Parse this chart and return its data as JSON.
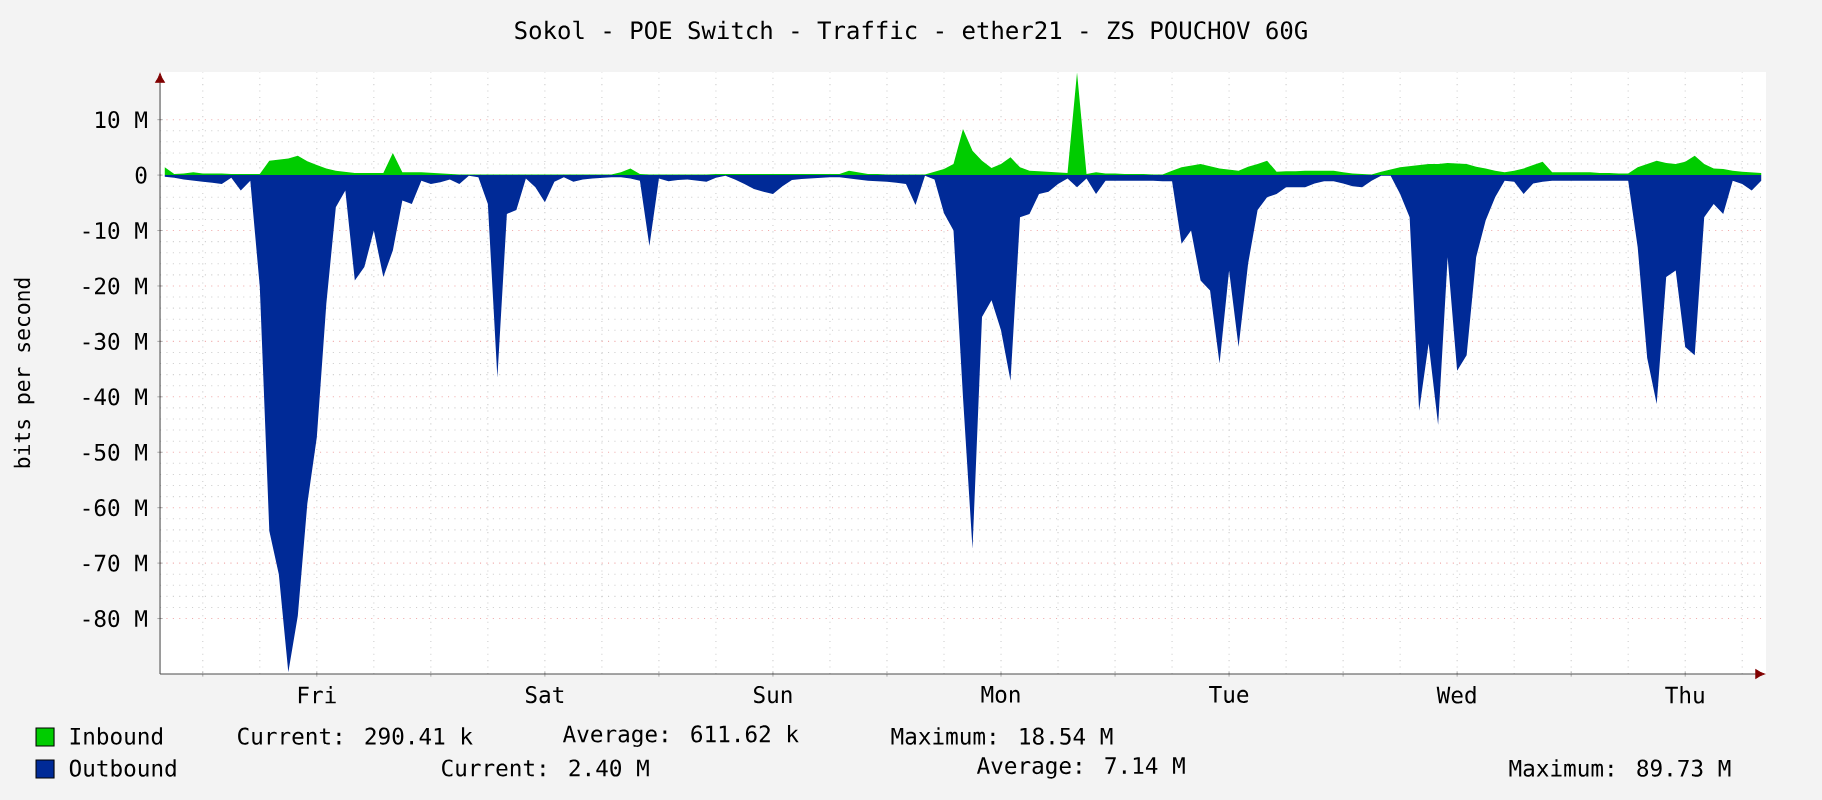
{
  "chart_data": {
    "type": "area",
    "title": "Sokol - POE Switch - Traffic - ether21 - ZS POUCHOV 60G",
    "ylabel": "bits per second",
    "ylim": [
      -90,
      18.6
    ],
    "categories": [
      null,
      null,
      null,
      null,
      null,
      null,
      null,
      null,
      null,
      null,
      null,
      null,
      null,
      null,
      null,
      null,
      "Fri",
      null,
      null,
      null,
      null,
      null,
      null,
      null,
      null,
      null,
      null,
      null,
      null,
      null,
      null,
      null,
      null,
      null,
      null,
      null,
      null,
      null,
      null,
      null,
      "Sat",
      null,
      null,
      null,
      null,
      null,
      null,
      null,
      null,
      null,
      null,
      null,
      null,
      null,
      null,
      null,
      null,
      null,
      null,
      null,
      null,
      null,
      null,
      null,
      "Sun",
      null,
      null,
      null,
      null,
      null,
      null,
      null,
      null,
      null,
      null,
      null,
      null,
      null,
      null,
      null,
      null,
      null,
      null,
      null,
      null,
      null,
      null,
      null,
      "Mon",
      null,
      null,
      null,
      null,
      null,
      null,
      null,
      null,
      null,
      null,
      null,
      null,
      null,
      null,
      null,
      null,
      null,
      null,
      null,
      null,
      null,
      null,
      null,
      "Tue",
      null,
      null,
      null,
      null,
      null,
      null,
      null,
      null,
      null,
      null,
      null,
      null,
      null,
      null,
      null,
      null,
      null,
      null,
      null,
      null,
      null,
      null,
      null,
      "Wed",
      null,
      null,
      null,
      null,
      null,
      null,
      null,
      null,
      null,
      null,
      null,
      null,
      null,
      null,
      null,
      null,
      null,
      null,
      null,
      null,
      null,
      null,
      null,
      "Thu",
      null,
      null,
      null,
      null,
      null,
      null,
      null,
      null
    ],
    "yticks": [
      {
        "value": 10,
        "label": "10 M"
      },
      0,
      {
        "value": -10,
        "label": "-10 M"
      },
      {
        "value": -20,
        "label": "-20 M"
      },
      {
        "value": -30,
        "label": "-30 M"
      },
      {
        "value": -40,
        "label": "-40 M"
      },
      {
        "value": -50,
        "label": "-50 M"
      },
      {
        "value": -60,
        "label": "-60 M"
      },
      {
        "value": -70,
        "label": "-70 M"
      },
      {
        "value": -80,
        "label": "-80 M"
      }
    ],
    "grid": true,
    "legend": "bottom",
    "annotations": [
      "Current: 290.41 k",
      "Average: 611.62 k",
      "Maximum: 18.54 M",
      "Current: 2.40 M",
      "Average: 7.14 M",
      "Maximum: 89.73 M"
    ],
    "series": [
      {
        "name": "Inbound",
        "color": "#00cc00",
        "values": [
          1.4,
          0.2,
          0.3,
          0.5,
          0.3,
          0.3,
          0.3,
          0.2,
          0.2,
          0.2,
          0.2,
          2.6,
          2.8,
          3.0,
          3.5,
          2.5,
          1.8,
          1.2,
          0.8,
          0.6,
          0.4,
          0.4,
          0.4,
          0.4,
          4.0,
          0.5,
          0.5,
          0.5,
          0.4,
          0.3,
          0.2,
          0.1,
          0.1,
          0.1,
          0.1,
          0.1,
          0.1,
          0.1,
          0.1,
          0.1,
          0.1,
          0.1,
          0.1,
          0.1,
          0.1,
          0.1,
          0.1,
          0.1,
          0.5,
          1.2,
          0.2,
          0.1,
          0.1,
          0.1,
          0.1,
          0.1,
          0.1,
          0.1,
          0.2,
          0.2,
          0.2,
          0.2,
          0.2,
          0.2,
          0.2,
          0.2,
          0.2,
          0.2,
          0.2,
          0.2,
          0.2,
          0.2,
          0.8,
          0.5,
          0.2,
          0.2,
          0.1,
          0.1,
          0.1,
          0.1,
          0.1,
          0.6,
          1.1,
          2.0,
          8.3,
          4.4,
          2.6,
          1.3,
          2.0,
          3.2,
          1.4,
          0.8,
          0.7,
          0.6,
          0.5,
          0.4,
          18.5,
          0.2,
          0.5,
          0.3,
          0.3,
          0.2,
          0.2,
          0.2,
          0.1,
          0.1,
          0.8,
          1.4,
          1.7,
          2.0,
          1.6,
          1.2,
          1.0,
          0.8,
          1.5,
          2.0,
          2.6,
          0.6,
          0.7,
          0.7,
          0.8,
          0.8,
          0.8,
          0.8,
          0.5,
          0.3,
          0.2,
          0.1,
          0.6,
          1.0,
          1.4,
          1.6,
          1.8,
          2.0,
          2.0,
          2.2,
          2.1,
          2.0,
          1.5,
          1.2,
          0.8,
          0.5,
          0.8,
          1.2,
          1.8,
          2.4,
          0.5,
          0.5,
          0.5,
          0.5,
          0.5,
          0.4,
          0.4,
          0.3,
          0.3,
          1.4,
          2.0,
          2.6,
          2.2,
          2.0,
          2.4,
          3.5,
          2.0,
          1.2,
          1.1,
          0.8,
          0.6,
          0.5,
          0.4
        ]
      },
      {
        "name": "Outbound",
        "color": "#002a97",
        "values": [
          -0.3,
          -0.5,
          -0.8,
          -1.0,
          -1.2,
          -1.4,
          -1.6,
          -0.5,
          -2.8,
          -1.0,
          -20.2,
          -64.2,
          -72.0,
          -89.7,
          -79.5,
          -59.3,
          -47.3,
          -23.2,
          -5.8,
          -2.8,
          -19.0,
          -16.6,
          -10.0,
          -18.4,
          -13.6,
          -4.6,
          -5.2,
          -1.0,
          -1.6,
          -1.3,
          -0.8,
          -1.6,
          -0.1,
          -0.4,
          -5.2,
          -36.5,
          -7.0,
          -6.3,
          -0.6,
          -2.2,
          -4.9,
          -1.2,
          -0.4,
          -1.2,
          -0.8,
          -0.6,
          -0.5,
          -0.4,
          -0.4,
          -0.6,
          -1.0,
          -12.8,
          -0.6,
          -1.1,
          -0.9,
          -0.8,
          -1.0,
          -1.2,
          -0.5,
          -0.1,
          -0.8,
          -1.6,
          -2.5,
          -3.0,
          -3.4,
          -2.0,
          -0.9,
          -0.7,
          -0.6,
          -0.5,
          -0.4,
          -0.4,
          -0.6,
          -0.8,
          -1.0,
          -1.1,
          -1.2,
          -1.4,
          -1.6,
          -5.4,
          -0.1,
          -0.8,
          -6.9,
          -10.0,
          -40.1,
          -67.4,
          -25.6,
          -22.6,
          -28.0,
          -37.1,
          -7.6,
          -7.0,
          -3.4,
          -3.0,
          -1.6,
          -0.6,
          -2.2,
          -0.6,
          -3.4,
          -1.0,
          -1.0,
          -1.0,
          -1.0,
          -1.0,
          -1.0,
          -1.1,
          -1.1,
          -12.4,
          -10.0,
          -19.0,
          -20.8,
          -34.0,
          -17.2,
          -31.0,
          -16.0,
          -6.3,
          -4.0,
          -3.4,
          -2.2,
          -2.2,
          -2.2,
          -1.5,
          -1.1,
          -1.1,
          -1.5,
          -2.0,
          -2.2,
          -1.0,
          -0.1,
          -0.1,
          -3.4,
          -7.6,
          -42.5,
          -30.4,
          -45.1,
          -14.8,
          -35.3,
          -32.5,
          -14.8,
          -8.2,
          -4.0,
          -1.0,
          -1.2,
          -3.4,
          -1.5,
          -1.2,
          -1.0,
          -1.0,
          -1.0,
          -1.0,
          -1.0,
          -1.0,
          -1.0,
          -1.0,
          -1.0,
          -13.0,
          -33.0,
          -41.3,
          -18.4,
          -17.2,
          -31.0,
          -32.5,
          -7.6,
          -5.2,
          -7.0,
          -1.0,
          -1.6,
          -2.8,
          -1.0
        ]
      }
    ]
  }
}
